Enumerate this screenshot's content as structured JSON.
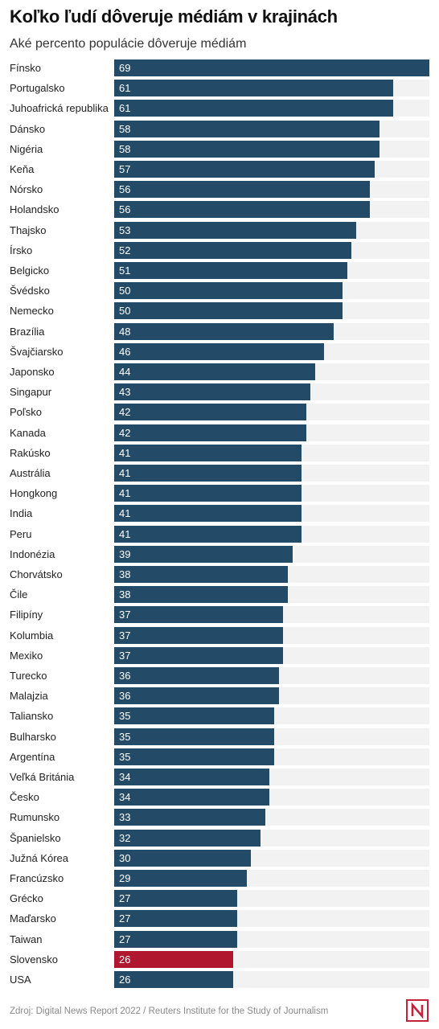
{
  "header": {
    "title": "Koľko ľudí dôveruje médiám v krajinách",
    "subtitle": "Aké percento populácie dôveruje médiám"
  },
  "footer": {
    "source": "Zdroj: Digital News Report 2022 / Reuters Institute for the Study of Journalism",
    "logo_icon": "n-logo-icon"
  },
  "colors": {
    "bar": "#234a66",
    "highlight": "#b0172f",
    "track": "#f2f2f2",
    "logo": "#c3223a"
  },
  "chart_data": {
    "type": "bar",
    "orientation": "horizontal",
    "title": "Koľko ľudí dôveruje médiám v krajinách",
    "subtitle": "Aké percento populácie dôveruje médiám",
    "xlim": [
      0,
      69
    ],
    "grid": false,
    "highlight": "Slovensko",
    "categories": [
      "Fínsko",
      "Portugalsko",
      "Juhoafrická republika",
      "Dánsko",
      "Nigéria",
      "Keňa",
      "Nórsko",
      "Holandsko",
      "Thajsko",
      "Írsko",
      "Belgicko",
      "Švédsko",
      "Nemecko",
      "Brazília",
      "Švajčiarsko",
      "Japonsko",
      "Singapur",
      "Poľsko",
      "Kanada",
      "Rakúsko",
      "Austrália",
      "Hongkong",
      "India",
      "Peru",
      "Indonézia",
      "Chorvátsko",
      "Čile",
      "Filipíny",
      "Kolumbia",
      "Mexiko",
      "Turecko",
      "Malajzia",
      "Taliansko",
      "Bulharsko",
      "Argentína",
      "Veľká Británia",
      "Česko",
      "Rumunsko",
      "Španielsko",
      "Južná Kórea",
      "Francúzsko",
      "Grécko",
      "Maďarsko",
      "Taiwan",
      "Slovensko",
      "USA"
    ],
    "values": [
      69,
      61,
      61,
      58,
      58,
      57,
      56,
      56,
      53,
      52,
      51,
      50,
      50,
      48,
      46,
      44,
      43,
      42,
      42,
      41,
      41,
      41,
      41,
      41,
      39,
      38,
      38,
      37,
      37,
      37,
      36,
      36,
      35,
      35,
      35,
      34,
      34,
      33,
      32,
      30,
      29,
      27,
      27,
      27,
      26,
      26
    ]
  }
}
